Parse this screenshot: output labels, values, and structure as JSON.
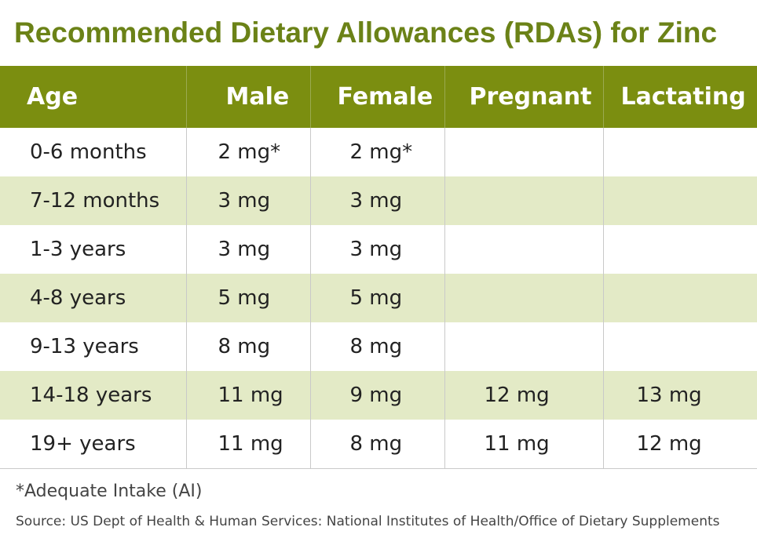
{
  "title": "Recommended Dietary Allowances (RDAs) for Zinc",
  "table": {
    "headers": [
      "Age",
      "Male",
      "Female",
      "Pregnant",
      "Lactating"
    ],
    "rows": [
      [
        "0-6 months",
        "2 mg*",
        "2 mg*",
        "",
        ""
      ],
      [
        "7-12 months",
        "3 mg",
        "3 mg",
        "",
        ""
      ],
      [
        "1-3 years",
        "3 mg",
        "3 mg",
        "",
        ""
      ],
      [
        "4-8 years",
        "5 mg",
        "5 mg",
        "",
        ""
      ],
      [
        "9-13 years",
        "8 mg",
        "8 mg",
        "",
        ""
      ],
      [
        "14-18 years",
        "11 mg",
        "9 mg",
        "12 mg",
        "13 mg"
      ],
      [
        "19+ years",
        "11 mg",
        "8 mg",
        "11 mg",
        "12 mg"
      ]
    ]
  },
  "footnote": "*Adequate Intake (AI)",
  "source": "Source: US Dept of Health & Human Services: National Institutes of Health/Office of Dietary Supplements",
  "colors": {
    "title": "#6b8217",
    "header_bg": "#7b8e10",
    "header_text": "#ffffff",
    "alt_row_bg": "#e3eac6",
    "row_bg": "#ffffff"
  }
}
